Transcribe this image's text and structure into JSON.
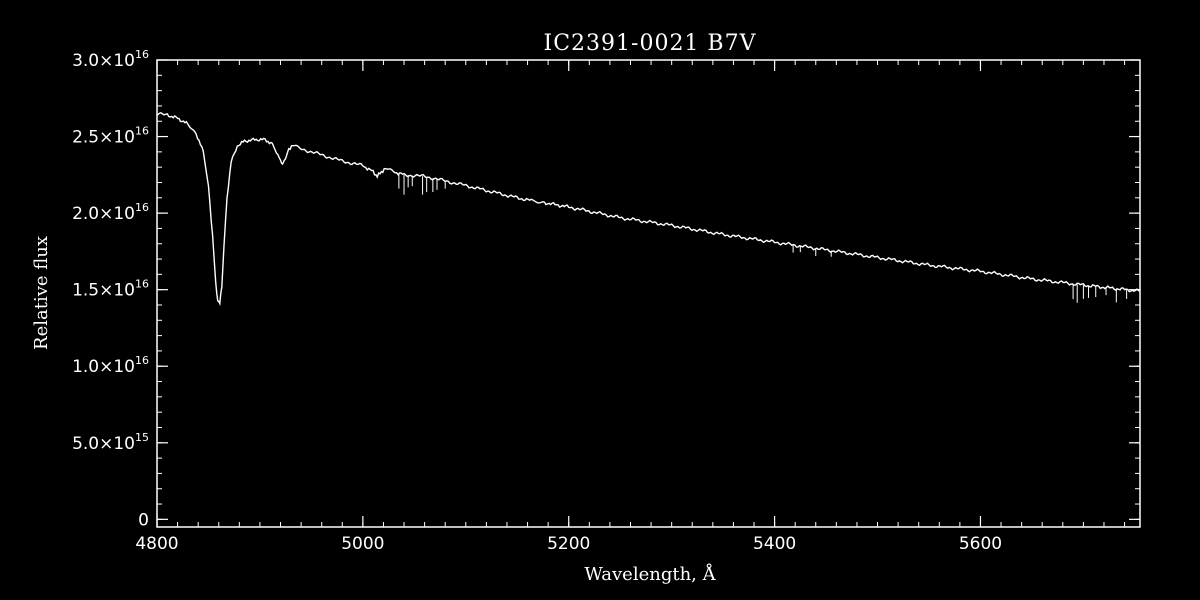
{
  "colors": {
    "background": "#000000",
    "foreground": "#ffffff"
  },
  "chart_data": {
    "type": "line",
    "title": "IC2391-0021  B7V",
    "xlabel": "Wavelength, Å",
    "ylabel": "Relative flux",
    "xlim": [
      4800,
      5755
    ],
    "ylim": [
      -500000000000000.0,
      3e+16
    ],
    "x_ticks": [
      {
        "value": 4800,
        "label": "4800"
      },
      {
        "value": 5000,
        "label": "5000"
      },
      {
        "value": 5200,
        "label": "5200"
      },
      {
        "value": 5400,
        "label": "5400"
      },
      {
        "value": 5600,
        "label": "5600"
      }
    ],
    "y_ticks": [
      {
        "value": 0,
        "mant": "0",
        "exp": ""
      },
      {
        "value": 5000000000000000.0,
        "mant": "5.0×10",
        "exp": "15"
      },
      {
        "value": 1e+16,
        "mant": "1.0×10",
        "exp": "16"
      },
      {
        "value": 1.5e+16,
        "mant": "1.5×10",
        "exp": "16"
      },
      {
        "value": 2e+16,
        "mant": "2.0×10",
        "exp": "16"
      },
      {
        "value": 2.5e+16,
        "mant": "2.5×10",
        "exp": "16"
      },
      {
        "value": 3e+16,
        "mant": "3.0×10",
        "exp": "16"
      }
    ],
    "x_minor_step": 20,
    "y_minor_step": 1000000000000000.0,
    "grid": false,
    "series": [
      {
        "color": "#ffffff",
        "x": [
          4796,
          4810,
          4820,
          4830,
          4838,
          4845,
          4850,
          4854,
          4857,
          4859,
          4861,
          4863,
          4865,
          4868,
          4872,
          4878,
          4885,
          4895,
          4905,
          4912,
          4916,
          4920,
          4922,
          4925,
          4928,
          4932,
          4940,
          4960,
          4980,
          5000,
          5010,
          5014,
          5018,
          5022,
          5030,
          5040,
          5060,
          5080,
          5100,
          5150,
          5165,
          5170,
          5175,
          5200,
          5250,
          5300,
          5350,
          5400,
          5450,
          5500,
          5550,
          5600,
          5650,
          5700,
          5755
        ],
        "y": [
          2.65e+16,
          2.64e+16,
          2.62e+16,
          2.58e+16,
          2.52e+16,
          2.4e+16,
          2.18e+16,
          1.85e+16,
          1.55e+16,
          1.43e+16,
          1.41e+16,
          1.52e+16,
          1.78e+16,
          2.1e+16,
          2.33e+16,
          2.44e+16,
          2.47e+16,
          2.48e+16,
          2.48e+16,
          2.45e+16,
          2.4e+16,
          2.34e+16,
          2.31e+16,
          2.36e+16,
          2.42e+16,
          2.44e+16,
          2.42e+16,
          2.38e+16,
          2.34e+16,
          2.31e+16,
          2.27e+16,
          2.24e+16,
          2.27e+16,
          2.29e+16,
          2.27e+16,
          2.25e+16,
          2.24e+16,
          2.21e+16,
          2.18e+16,
          2.1e+16,
          2.08e+16,
          2.07e+16,
          2.07e+16,
          2.04e+16,
          1.97e+16,
          1.92e+16,
          1.86e+16,
          1.81e+16,
          1.76e+16,
          1.71e+16,
          1.66e+16,
          1.62e+16,
          1.57e+16,
          1.53e+16,
          1.49e+16
        ]
      }
    ],
    "absorption_features": [
      {
        "x": 5035,
        "depth": 1000000000000000.0
      },
      {
        "x": 5040,
        "depth": 1300000000000000.0
      },
      {
        "x": 5044,
        "depth": 800000000000000.0
      },
      {
        "x": 5048,
        "depth": 700000000000000.0
      },
      {
        "x": 5058,
        "depth": 1200000000000000.0
      },
      {
        "x": 5062,
        "depth": 1000000000000000.0
      },
      {
        "x": 5068,
        "depth": 900000000000000.0
      },
      {
        "x": 5072,
        "depth": 700000000000000.0
      },
      {
        "x": 5080,
        "depth": 500000000000000.0
      },
      {
        "x": 5418,
        "depth": 500000000000000.0
      },
      {
        "x": 5425,
        "depth": 400000000000000.0
      },
      {
        "x": 5440,
        "depth": 500000000000000.0
      },
      {
        "x": 5455,
        "depth": 400000000000000.0
      },
      {
        "x": 5690,
        "depth": 1000000000000000.0
      },
      {
        "x": 5694,
        "depth": 1200000000000000.0
      },
      {
        "x": 5700,
        "depth": 900000000000000.0
      },
      {
        "x": 5705,
        "depth": 800000000000000.0
      },
      {
        "x": 5712,
        "depth": 700000000000000.0
      },
      {
        "x": 5722,
        "depth": 500000000000000.0
      },
      {
        "x": 5732,
        "depth": 900000000000000.0
      },
      {
        "x": 5742,
        "depth": 600000000000000.0
      }
    ]
  }
}
